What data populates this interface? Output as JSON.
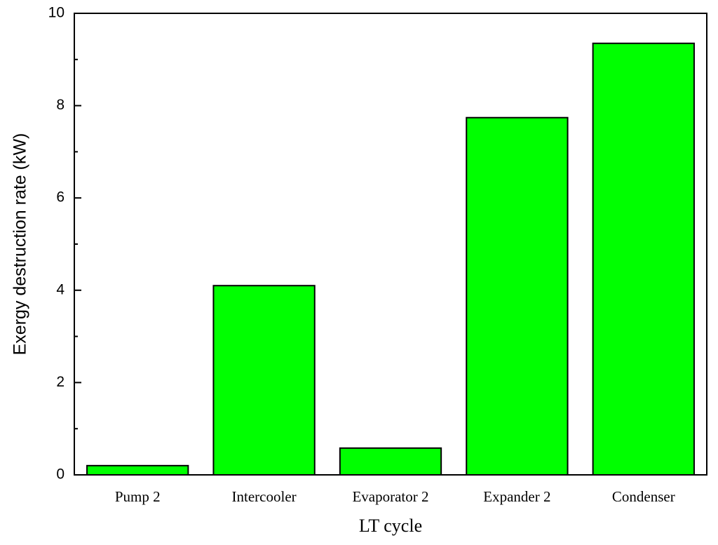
{
  "chart_data": {
    "type": "bar",
    "x_label": "LT cycle",
    "y_label": "Exergy destruction rate (kW)",
    "categories": [
      "Pump 2",
      "Intercooler",
      "Evaporator 2",
      "Expander 2",
      "Condenser"
    ],
    "values": [
      0.2,
      4.1,
      0.58,
      7.74,
      9.35
    ],
    "color": "#00ff00",
    "ylim": [
      0,
      10
    ],
    "yticks": [
      0,
      2,
      4,
      6,
      8,
      10
    ],
    "minor_yticks": [
      1,
      3,
      5,
      7,
      9
    ],
    "grid": false
  }
}
